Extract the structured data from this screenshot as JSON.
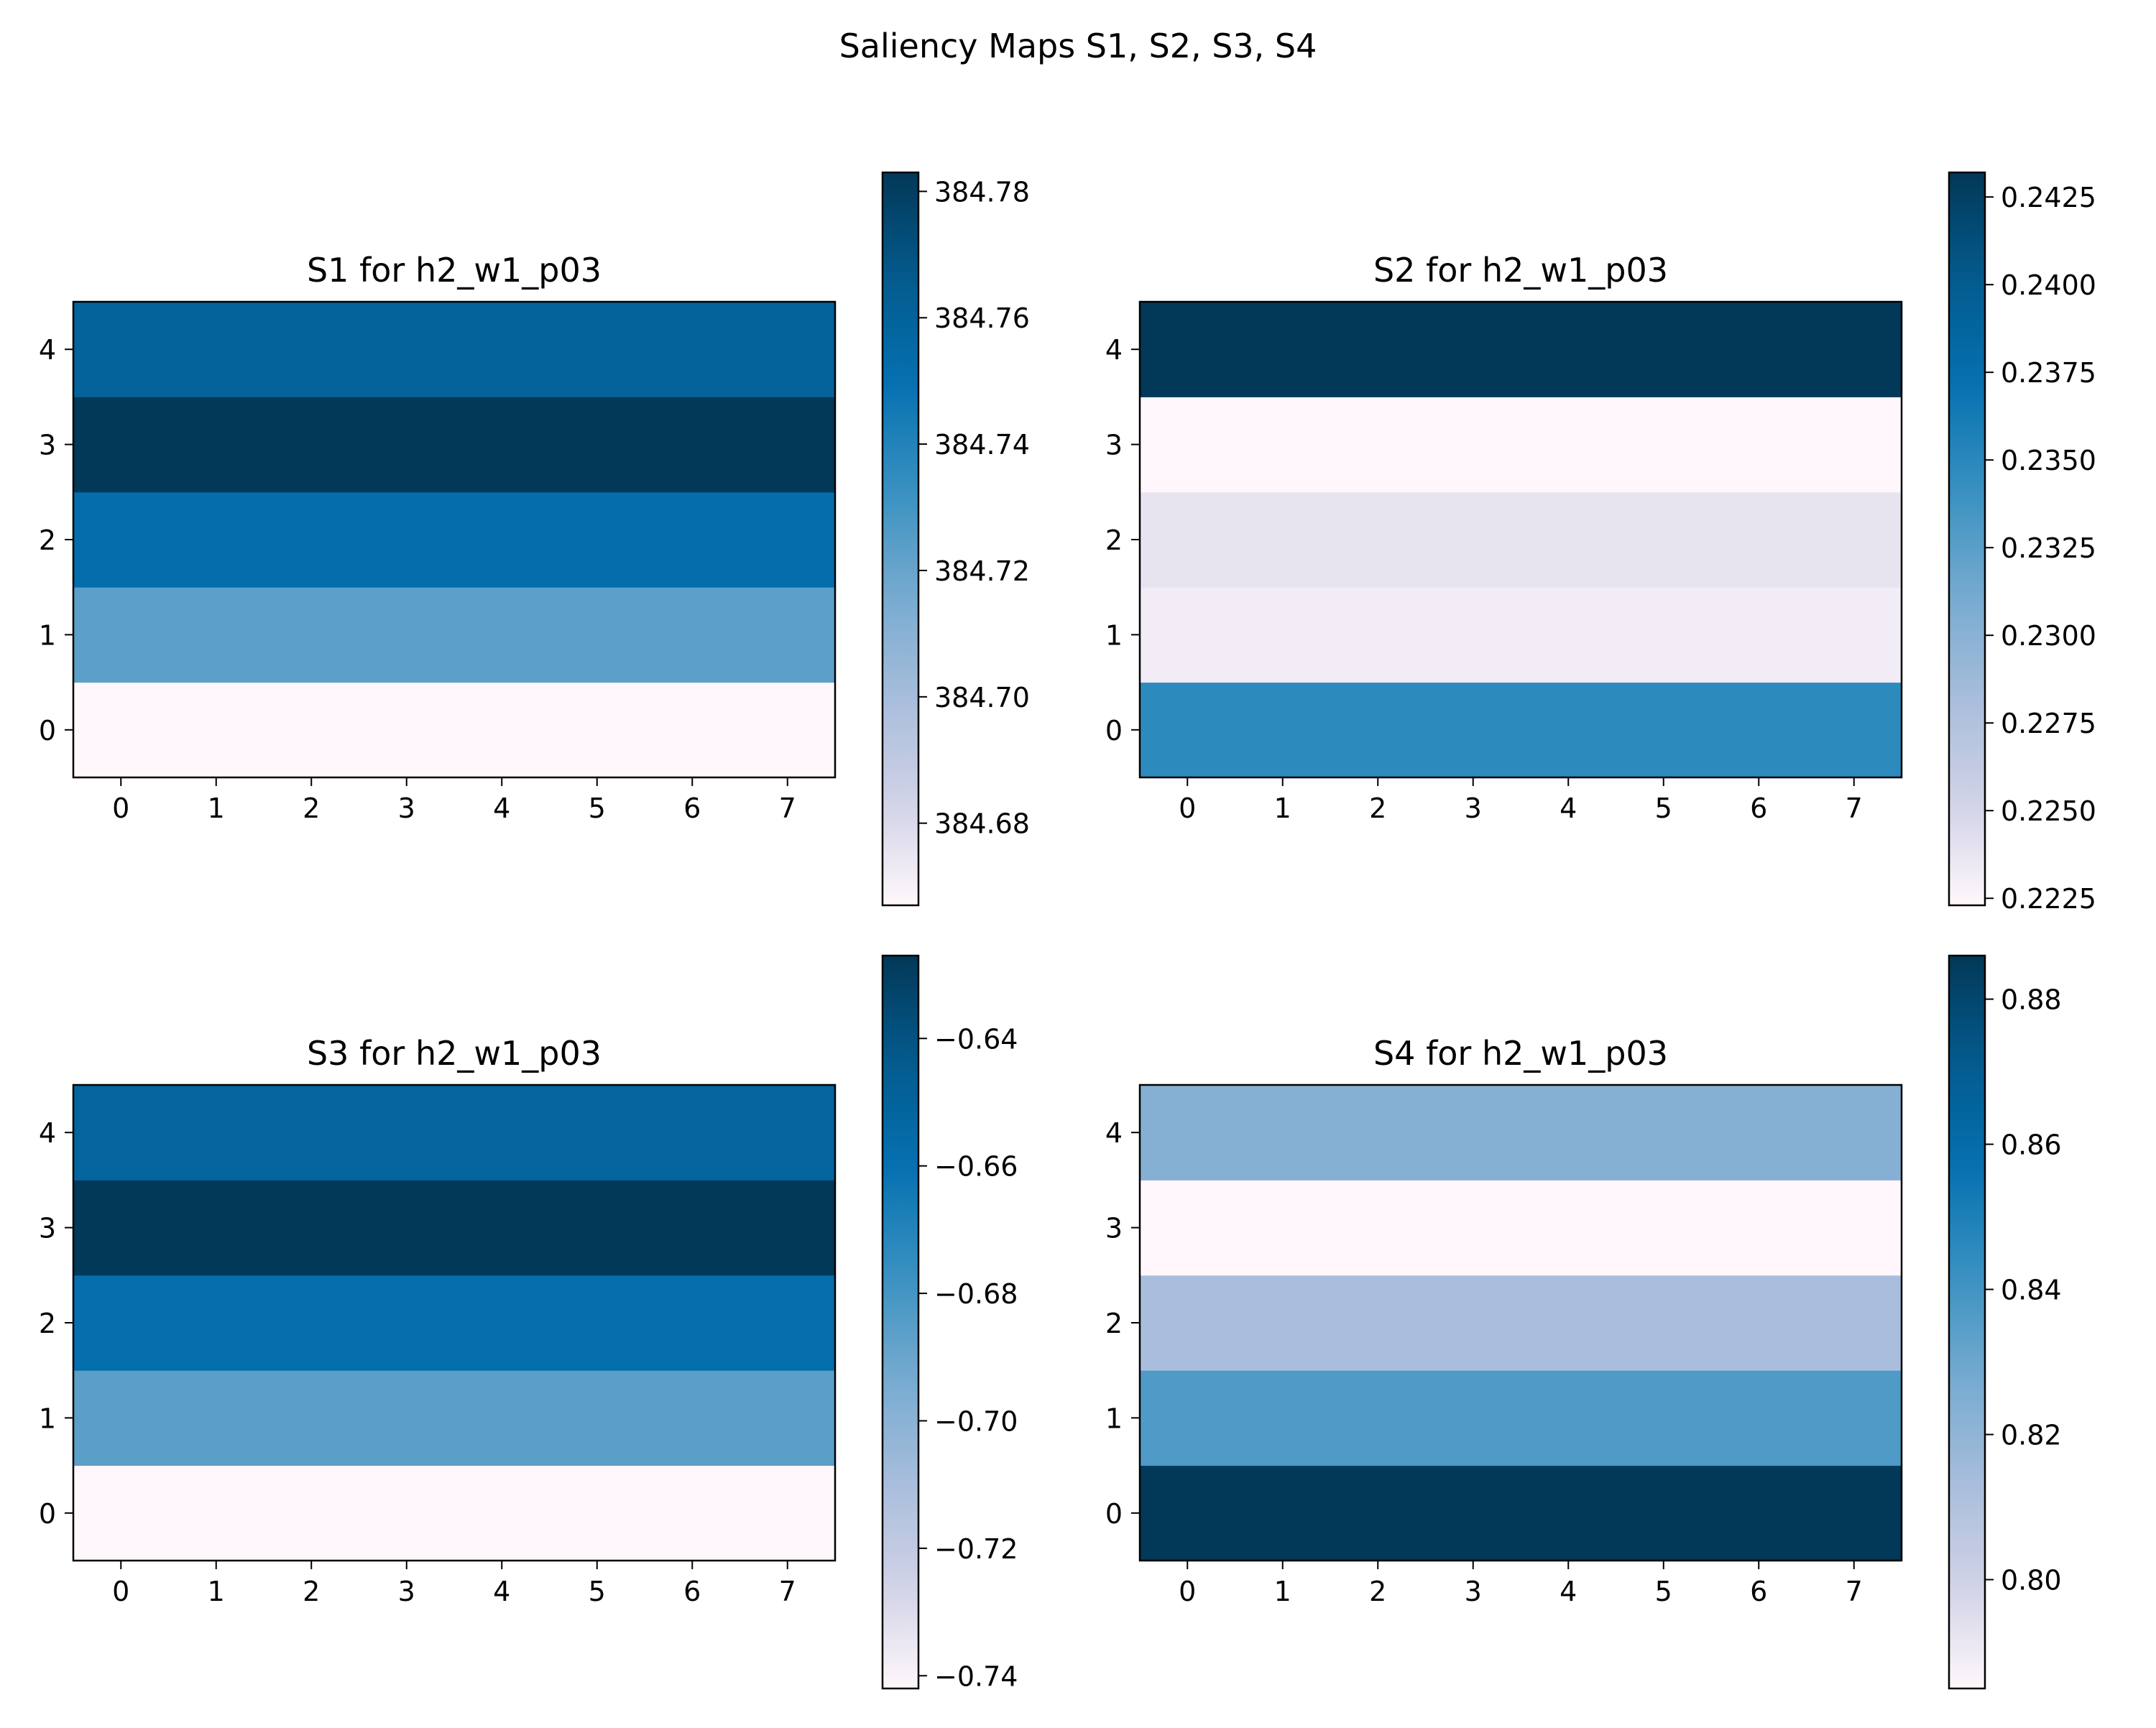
{
  "figure": {
    "title": "Saliency Maps S1, S2, S3, S4"
  },
  "colormap": {
    "name": "PuBu_r",
    "stops": [
      "#fff7fb",
      "#d0d1e6",
      "#a6bddb",
      "#74a9cf",
      "#3690c0",
      "#0570b0",
      "#045a8d",
      "#023858"
    ]
  },
  "chart_data": [
    {
      "type": "heatmap",
      "id": "s1",
      "title": "S1 for h2_w1_p03",
      "x_ticks": [
        "0",
        "1",
        "2",
        "3",
        "4",
        "5",
        "6",
        "7"
      ],
      "y_ticks": [
        "0",
        "1",
        "2",
        "3",
        "4"
      ],
      "rows": [
        {
          "row": 0,
          "value": 384.667
        },
        {
          "row": 1,
          "value": 384.723
        },
        {
          "row": 2,
          "value": 384.752
        },
        {
          "row": 3,
          "value": 384.783
        },
        {
          "row": 4,
          "value": 384.76
        }
      ],
      "columns": 8,
      "colorbar": {
        "range": [
          384.667,
          384.783
        ],
        "ticks": [
          "384.68",
          "384.70",
          "384.72",
          "384.74",
          "384.76",
          "384.78"
        ],
        "tick_values": [
          384.68,
          384.7,
          384.72,
          384.74,
          384.76,
          384.78
        ]
      }
    },
    {
      "type": "heatmap",
      "id": "s2",
      "title": "S2 for h2_w1_p03",
      "x_ticks": [
        "0",
        "1",
        "2",
        "3",
        "4",
        "5",
        "6",
        "7"
      ],
      "y_ticks": [
        "0",
        "1",
        "2",
        "3",
        "4"
      ],
      "rows": [
        {
          "row": 0,
          "value": 0.2348
        },
        {
          "row": 1,
          "value": 0.2232
        },
        {
          "row": 2,
          "value": 0.2238
        },
        {
          "row": 3,
          "value": 0.2223
        },
        {
          "row": 4,
          "value": 0.2432
        }
      ],
      "columns": 8,
      "colorbar": {
        "range": [
          0.2223,
          0.2432
        ],
        "ticks": [
          "0.2225",
          "0.2250",
          "0.2275",
          "0.2300",
          "0.2325",
          "0.2350",
          "0.2375",
          "0.2400",
          "0.2425"
        ],
        "tick_values": [
          0.2225,
          0.225,
          0.2275,
          0.23,
          0.2325,
          0.235,
          0.2375,
          0.24,
          0.2425
        ]
      }
    },
    {
      "type": "heatmap",
      "id": "s3",
      "title": "S3 for h2_w1_p03",
      "x_ticks": [
        "0",
        "1",
        "2",
        "3",
        "4",
        "5",
        "6",
        "7"
      ],
      "y_ticks": [
        "0",
        "1",
        "2",
        "3",
        "4"
      ],
      "rows": [
        {
          "row": 0,
          "value": -0.742
        },
        {
          "row": 1,
          "value": -0.686
        },
        {
          "row": 2,
          "value": -0.658
        },
        {
          "row": 3,
          "value": -0.627
        },
        {
          "row": 4,
          "value": -0.651
        }
      ],
      "columns": 8,
      "colorbar": {
        "range": [
          -0.742,
          -0.627
        ],
        "ticks": [
          "−0.74",
          "−0.72",
          "−0.70",
          "−0.68",
          "−0.66",
          "−0.64"
        ],
        "tick_values": [
          -0.74,
          -0.72,
          -0.7,
          -0.68,
          -0.66,
          -0.64
        ]
      }
    },
    {
      "type": "heatmap",
      "id": "s4",
      "title": "S4 for h2_w1_p03",
      "x_ticks": [
        "0",
        "1",
        "2",
        "3",
        "4",
        "5",
        "6",
        "7"
      ],
      "y_ticks": [
        "0",
        "1",
        "2",
        "3",
        "4"
      ],
      "rows": [
        {
          "row": 0,
          "value": 0.886
        },
        {
          "row": 1,
          "value": 0.837
        },
        {
          "row": 2,
          "value": 0.813
        },
        {
          "row": 3,
          "value": 0.785
        },
        {
          "row": 4,
          "value": 0.823
        }
      ],
      "columns": 8,
      "colorbar": {
        "range": [
          0.785,
          0.886
        ],
        "ticks": [
          "0.80",
          "0.82",
          "0.84",
          "0.86",
          "0.88"
        ],
        "tick_values": [
          0.8,
          0.82,
          0.84,
          0.86,
          0.88
        ]
      }
    }
  ]
}
